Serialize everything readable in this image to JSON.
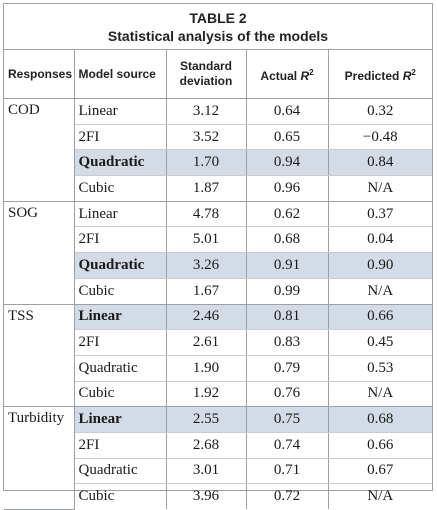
{
  "caption": {
    "label": "TABLE 2",
    "title": "Statistical analysis of the models"
  },
  "headers": {
    "responses": "Responses",
    "model_source": "Model source",
    "std_line1": "Standard",
    "std_line2": "deviation",
    "actual_prefix": "Actual ",
    "actual_var": "R",
    "actual_sup": "2",
    "predicted_prefix": "Predicted ",
    "predicted_var": "R",
    "predicted_sup": "2"
  },
  "groups": [
    {
      "response": "COD",
      "rows": [
        {
          "model": "Linear",
          "std": "3.12",
          "actual": "0.64",
          "predicted": "0.32",
          "best": false
        },
        {
          "model": "2FI",
          "std": "3.52",
          "actual": "0.65",
          "predicted": "−0.48",
          "best": false
        },
        {
          "model": "Quadratic",
          "std": "1.70",
          "actual": "0.94",
          "predicted": "0.84",
          "best": true
        },
        {
          "model": "Cubic",
          "std": "1.87",
          "actual": "0.96",
          "predicted": "N/A",
          "best": false
        }
      ]
    },
    {
      "response": "SOG",
      "rows": [
        {
          "model": "Linear",
          "std": "4.78",
          "actual": "0.62",
          "predicted": "0.37",
          "best": false
        },
        {
          "model": "2FI",
          "std": "5.01",
          "actual": "0.68",
          "predicted": "0.04",
          "best": false
        },
        {
          "model": "Quadratic",
          "std": "3.26",
          "actual": "0.91",
          "predicted": "0.90",
          "best": true
        },
        {
          "model": "Cubic",
          "std": "1.67",
          "actual": "0.99",
          "predicted": "N/A",
          "best": false
        }
      ]
    },
    {
      "response": "TSS",
      "rows": [
        {
          "model": "Linear",
          "std": "2.46",
          "actual": "0.81",
          "predicted": "0.66",
          "best": true
        },
        {
          "model": "2FI",
          "std": "2.61",
          "actual": "0.83",
          "predicted": "0.45",
          "best": false
        },
        {
          "model": "Quadratic",
          "std": "1.90",
          "actual": "0.79",
          "predicted": "0.53",
          "best": false
        },
        {
          "model": "Cubic",
          "std": "1.92",
          "actual": "0.76",
          "predicted": "N/A",
          "best": false
        }
      ]
    },
    {
      "response": "Turbidity",
      "rows": [
        {
          "model": "Linear",
          "std": "2.55",
          "actual": "0.75",
          "predicted": "0.68",
          "best": true
        },
        {
          "model": "2FI",
          "std": "2.68",
          "actual": "0.74",
          "predicted": "0.66",
          "best": false
        },
        {
          "model": "Quadratic",
          "std": "3.01",
          "actual": "0.71",
          "predicted": "0.67",
          "best": false
        },
        {
          "model": "Cubic",
          "std": "3.96",
          "actual": "0.72",
          "predicted": "N/A",
          "best": false
        }
      ]
    }
  ],
  "colors": {
    "highlight": "#d3dbe6",
    "border": "#9aa0a6"
  }
}
